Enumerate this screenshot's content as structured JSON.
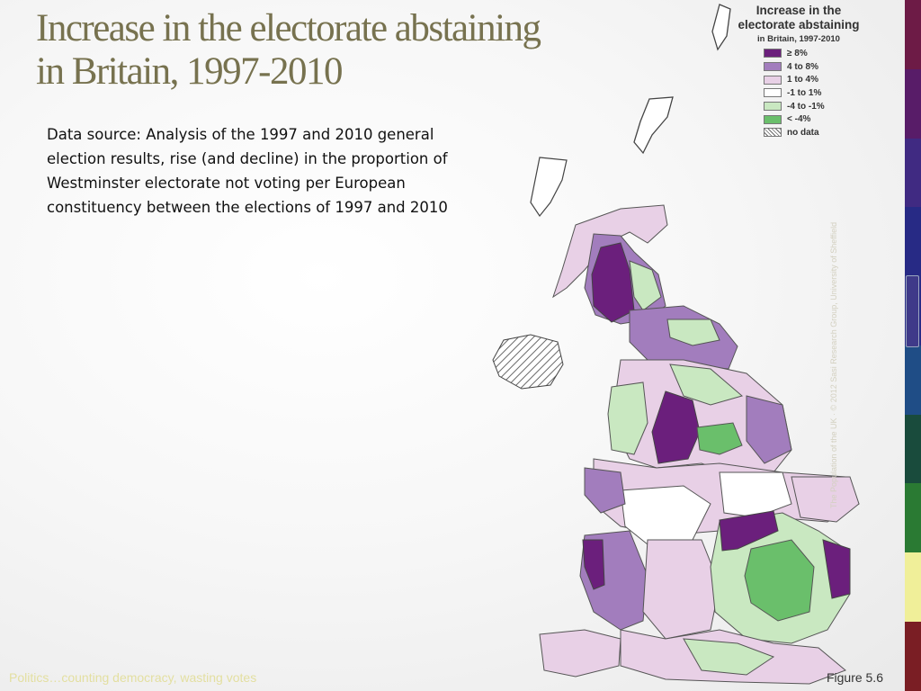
{
  "title": {
    "line1": "Increase in the electorate abstaining",
    "line2": "in Britain, 1997-2010"
  },
  "description": "Data source: Analysis of the 1997 and 2010 general election results, rise (and decline) in the proportion of Westminster electorate not voting per European constituency between the elections of 1997 and 2010",
  "legend": {
    "title_line1": "Increase in the",
    "title_line2": "electorate abstaining",
    "subtitle": "in Britain, 1997-2010",
    "items": [
      {
        "label": "≥ 8%",
        "color": "#6b1f7c"
      },
      {
        "label": "4 to 8%",
        "color": "#a27dbd"
      },
      {
        "label": "1 to 4%",
        "color": "#e8d0e6"
      },
      {
        "label": "-1 to 1%",
        "color": "#ffffff"
      },
      {
        "label": "-4 to -1%",
        "color": "#c9e8c1"
      },
      {
        "label": "< -4%",
        "color": "#6abf6b"
      },
      {
        "label": "no data",
        "color": "hatched"
      }
    ]
  },
  "credit": "The Population of the UK · © 2012 Sasi Research Group, University of Sheffield",
  "footer": {
    "left": "Politics…counting democracy, wasting votes",
    "right": "Figure 5.6"
  },
  "colors": {
    "title": "#77724f",
    "bar": [
      "#6d1b46",
      "#581c68",
      "#402a82",
      "#272a85",
      "#1f4d86",
      "#194b3c",
      "#2a7a33",
      "#f0ef99",
      "#7a1e24"
    ]
  }
}
